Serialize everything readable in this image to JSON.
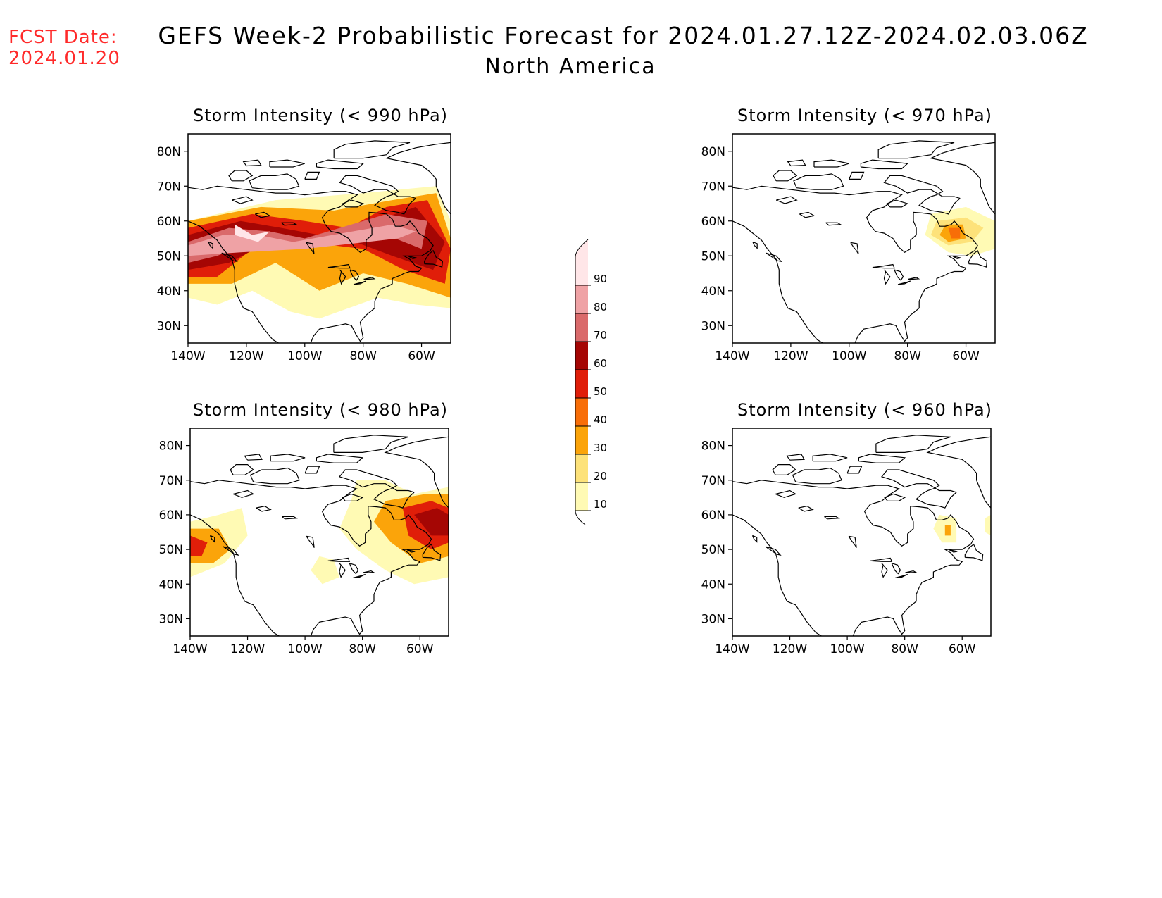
{
  "header": {
    "fcst_label": "FCST Date:",
    "fcst_date": "2024.01.20",
    "title": "GEFS Week-2 Probabilistic Forecast for 2024.01.27.12Z-2024.02.03.06Z",
    "subtitle": "North America"
  },
  "panels": [
    {
      "id": "p990",
      "title": "Storm Intensity (< 990 hPa)",
      "threshold_hPa": 990
    },
    {
      "id": "p970",
      "title": "Storm Intensity (< 970 hPa)",
      "threshold_hPa": 970
    },
    {
      "id": "p980",
      "title": "Storm Intensity (< 980 hPa)",
      "threshold_hPa": 980
    },
    {
      "id": "p960",
      "title": "Storm Intensity (< 960 hPa)",
      "threshold_hPa": 960
    }
  ],
  "axes": {
    "lat_labels": [
      "80N",
      "70N",
      "60N",
      "50N",
      "40N",
      "30N"
    ],
    "lon_labels": [
      "140W",
      "120W",
      "100W",
      "80W",
      "60W"
    ],
    "lat_range": [
      25,
      85
    ],
    "lon_range": [
      -140,
      -50
    ]
  },
  "colorbar": {
    "levels": [
      "10",
      "20",
      "30",
      "40",
      "50",
      "60",
      "70",
      "80",
      "90"
    ],
    "colors": [
      "#fffab4",
      "#fde27a",
      "#fba40a",
      "#f86e08",
      "#e01e09",
      "#a50604",
      "#da6a6b",
      "#efa2a5",
      "#ffe6e8"
    ]
  },
  "probability_areas": {
    "p990": [
      {
        "level": 10,
        "points": [
          [
            -140,
            60
          ],
          [
            -110,
            66
          ],
          [
            -80,
            68
          ],
          [
            -55,
            70
          ],
          [
            -50,
            60
          ],
          [
            -50,
            35
          ],
          [
            -62,
            36
          ],
          [
            -75,
            38
          ],
          [
            -85,
            35
          ],
          [
            -95,
            32
          ],
          [
            -105,
            34
          ],
          [
            -118,
            40
          ],
          [
            -130,
            36
          ],
          [
            -140,
            38
          ]
        ]
      },
      {
        "level": 30,
        "points": [
          [
            -140,
            60
          ],
          [
            -115,
            64
          ],
          [
            -90,
            63
          ],
          [
            -70,
            66
          ],
          [
            -55,
            68
          ],
          [
            -50,
            55
          ],
          [
            -50,
            38
          ],
          [
            -65,
            42
          ],
          [
            -80,
            45
          ],
          [
            -95,
            40
          ],
          [
            -110,
            48
          ],
          [
            -125,
            42
          ],
          [
            -140,
            42
          ]
        ]
      },
      {
        "level": 50,
        "points": [
          [
            -140,
            58
          ],
          [
            -118,
            62
          ],
          [
            -100,
            60
          ],
          [
            -85,
            58
          ],
          [
            -72,
            64
          ],
          [
            -58,
            66
          ],
          [
            -50,
            52
          ],
          [
            -52,
            42
          ],
          [
            -66,
            46
          ],
          [
            -80,
            52
          ],
          [
            -100,
            54
          ],
          [
            -118,
            52
          ],
          [
            -130,
            44
          ],
          [
            -140,
            44
          ]
        ]
      },
      {
        "level": 60,
        "points": [
          [
            -140,
            56
          ],
          [
            -122,
            60
          ],
          [
            -108,
            58
          ],
          [
            -95,
            56
          ],
          [
            -76,
            60
          ],
          [
            -62,
            64
          ],
          [
            -52,
            54
          ],
          [
            -56,
            46
          ],
          [
            -70,
            50
          ],
          [
            -86,
            55
          ],
          [
            -110,
            55
          ],
          [
            -126,
            48
          ],
          [
            -140,
            46
          ]
        ]
      },
      {
        "level": 70,
        "points": [
          [
            -140,
            54
          ],
          [
            -126,
            58
          ],
          [
            -112,
            57
          ],
          [
            -100,
            55
          ],
          [
            -72,
            62
          ],
          [
            -58,
            60
          ],
          [
            -60,
            52
          ],
          [
            -72,
            56
          ],
          [
            -92,
            53
          ],
          [
            -118,
            54
          ],
          [
            -130,
            50
          ],
          [
            -140,
            48
          ]
        ]
      },
      {
        "level": 80,
        "points": [
          [
            -140,
            53
          ],
          [
            -128,
            56
          ],
          [
            -116,
            56
          ],
          [
            -104,
            54
          ],
          [
            -70,
            59
          ],
          [
            -62,
            57
          ],
          [
            -68,
            55
          ],
          [
            -100,
            52
          ],
          [
            -122,
            51
          ],
          [
            -140,
            50
          ]
        ]
      },
      {
        "level": 90,
        "points": [
          [
            -124,
            59
          ],
          [
            -118,
            56
          ],
          [
            -112,
            57
          ],
          [
            -116,
            54
          ],
          [
            -124,
            56
          ]
        ]
      }
    ],
    "p970": [
      {
        "level": 10,
        "points": [
          [
            -72,
            62
          ],
          [
            -60,
            64
          ],
          [
            -50,
            60
          ],
          [
            -50,
            52
          ],
          [
            -58,
            50
          ],
          [
            -66,
            51
          ],
          [
            -74,
            56
          ]
        ]
      },
      {
        "level": 20,
        "points": [
          [
            -70,
            60
          ],
          [
            -60,
            61
          ],
          [
            -54,
            58
          ],
          [
            -58,
            54
          ],
          [
            -66,
            53
          ],
          [
            -72,
            56
          ]
        ]
      },
      {
        "level": 30,
        "points": [
          [
            -67,
            59
          ],
          [
            -61,
            59
          ],
          [
            -60,
            55
          ],
          [
            -66,
            54
          ],
          [
            -69,
            56
          ]
        ]
      },
      {
        "level": 40,
        "points": [
          [
            -66,
            58
          ],
          [
            -62,
            58
          ],
          [
            -62,
            55
          ],
          [
            -65,
            55
          ]
        ]
      }
    ],
    "p980": [
      {
        "level": 10,
        "points": [
          [
            -140,
            58
          ],
          [
            -130,
            60
          ],
          [
            -122,
            62
          ],
          [
            -120,
            54
          ],
          [
            -128,
            46
          ],
          [
            -140,
            42
          ]
        ]
      },
      {
        "level": 10,
        "points": [
          [
            -82,
            70
          ],
          [
            -72,
            70
          ],
          [
            -62,
            66
          ],
          [
            -50,
            68
          ],
          [
            -50,
            42
          ],
          [
            -62,
            40
          ],
          [
            -72,
            44
          ],
          [
            -82,
            50
          ],
          [
            -88,
            56
          ],
          [
            -84,
            64
          ]
        ]
      },
      {
        "level": 10,
        "points": [
          [
            -95,
            48
          ],
          [
            -90,
            47
          ],
          [
            -88,
            42
          ],
          [
            -94,
            40
          ],
          [
            -98,
            44
          ]
        ]
      },
      {
        "level": 30,
        "points": [
          [
            -140,
            56
          ],
          [
            -130,
            56
          ],
          [
            -126,
            50
          ],
          [
            -132,
            46
          ],
          [
            -140,
            46
          ]
        ]
      },
      {
        "level": 30,
        "points": [
          [
            -72,
            64
          ],
          [
            -58,
            66
          ],
          [
            -50,
            66
          ],
          [
            -50,
            48
          ],
          [
            -60,
            46
          ],
          [
            -70,
            52
          ],
          [
            -76,
            58
          ]
        ]
      },
      {
        "level": 50,
        "points": [
          [
            -66,
            62
          ],
          [
            -56,
            64
          ],
          [
            -50,
            62
          ],
          [
            -50,
            52
          ],
          [
            -56,
            50
          ],
          [
            -64,
            54
          ]
        ]
      },
      {
        "level": 50,
        "points": [
          [
            -140,
            54
          ],
          [
            -134,
            52
          ],
          [
            -136,
            48
          ],
          [
            -140,
            48
          ]
        ]
      },
      {
        "level": 60,
        "points": [
          [
            -62,
            60
          ],
          [
            -54,
            62
          ],
          [
            -50,
            60
          ],
          [
            -50,
            54
          ],
          [
            -56,
            54
          ]
        ]
      }
    ],
    "p960": [
      {
        "level": 10,
        "points": [
          [
            -68,
            60
          ],
          [
            -62,
            59
          ],
          [
            -62,
            52
          ],
          [
            -67,
            52
          ],
          [
            -70,
            56
          ]
        ]
      },
      {
        "level": 10,
        "points": [
          [
            -52,
            59
          ],
          [
            -50,
            60
          ],
          [
            -50,
            54
          ],
          [
            -52,
            55
          ]
        ]
      },
      {
        "level": 30,
        "points": [
          [
            -66,
            57
          ],
          [
            -64,
            57
          ],
          [
            -64,
            54
          ],
          [
            -66,
            54
          ]
        ]
      }
    ]
  }
}
